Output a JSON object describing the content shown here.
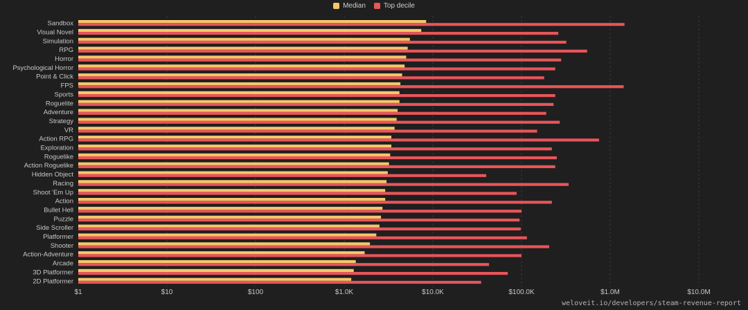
{
  "legend": {
    "median_label": "Median",
    "top_decile_label": "Top decile"
  },
  "colors": {
    "background": "#1f1f1f",
    "median": "#f5c76a",
    "top_decile": "#e8555a",
    "grid": "#3a3a3a",
    "text": "#c8c8c8"
  },
  "source_text": "weloveit.io/developers/steam-revenue-report",
  "chart_data": {
    "type": "bar",
    "orientation": "horizontal",
    "x_scale": "log",
    "xlim": [
      1,
      100000000
    ],
    "x_ticks": [
      1,
      10,
      100,
      1000,
      10000,
      100000,
      1000000,
      10000000
    ],
    "x_tick_labels": [
      "$1",
      "$10",
      "$100",
      "$1.0K",
      "$10.0K",
      "$100.0K",
      "$1.0M",
      "$10.0M"
    ],
    "grid": true,
    "legend_position": "top-center",
    "categories": [
      "Sandbox",
      "Visual Novel",
      "Simulation",
      "RPG",
      "Horror",
      "Psychological Horror",
      "Point & Click",
      "FPS",
      "Sports",
      "Roguelite",
      "Adventure",
      "Strategy",
      "VR",
      "Action RPG",
      "Exploration",
      "Roguelike",
      "Action Roguelike",
      "Hidden Object",
      "Racing",
      "Shoot 'Em Up",
      "Action",
      "Bullet Hell",
      "Puzzle",
      "Side Scroller",
      "Platformer",
      "Shooter",
      "Action-Adventure",
      "Arcade",
      "3D Platformer",
      "2D Platformer"
    ],
    "series": [
      {
        "name": "Median",
        "values": [
          8400,
          7400,
          5500,
          5200,
          5000,
          4800,
          4500,
          4300,
          4200,
          4200,
          4000,
          3900,
          3700,
          3400,
          3400,
          3300,
          3200,
          3100,
          3000,
          2900,
          2900,
          2700,
          2600,
          2500,
          2300,
          1950,
          1700,
          1350,
          1280,
          1200
        ]
      },
      {
        "name": "Top decile",
        "values": [
          1450000,
          260000,
          320000,
          550000,
          280000,
          240000,
          180000,
          1420000,
          240000,
          230000,
          190000,
          270000,
          150000,
          750000,
          220000,
          250000,
          240000,
          40000,
          340000,
          88000,
          220000,
          100000,
          95000,
          98000,
          115000,
          205000,
          100000,
          43000,
          70000,
          35000
        ]
      }
    ]
  }
}
